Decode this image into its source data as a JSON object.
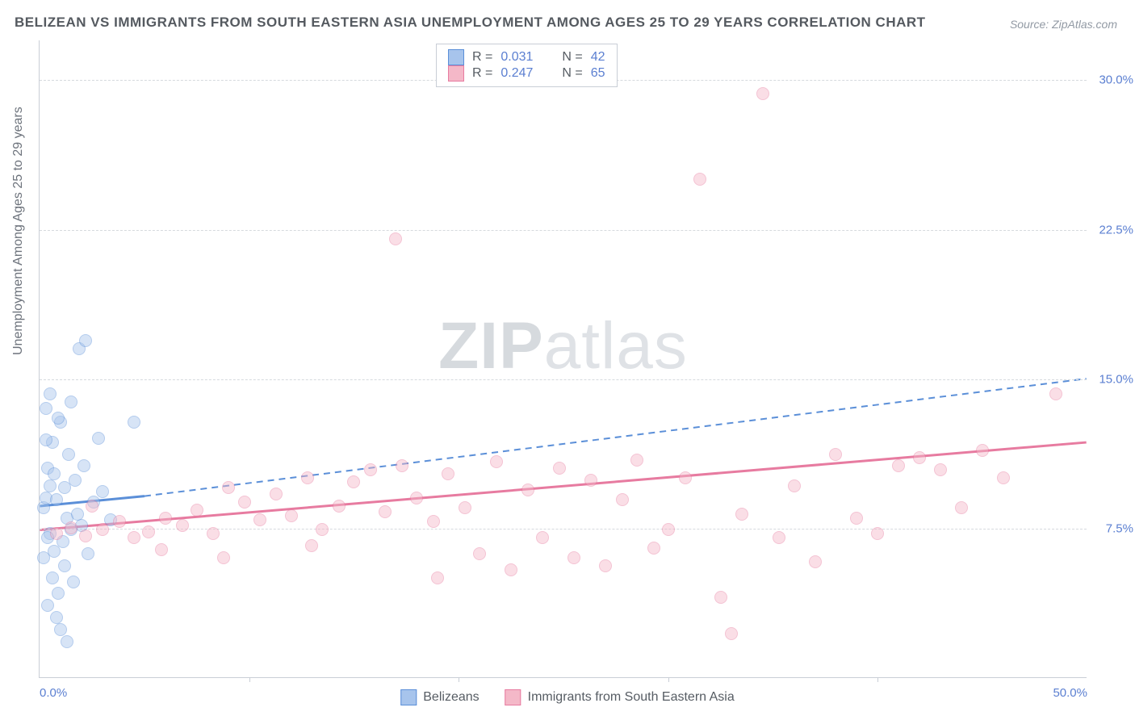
{
  "title": "BELIZEAN VS IMMIGRANTS FROM SOUTH EASTERN ASIA UNEMPLOYMENT AMONG AGES 25 TO 29 YEARS CORRELATION CHART",
  "source_label": "Source: ZipAtlas.com",
  "watermark": {
    "bold": "ZIP",
    "rest": "atlas"
  },
  "chart": {
    "type": "scatter",
    "y_axis_title": "Unemployment Among Ages 25 to 29 years",
    "background_color": "#ffffff",
    "grid_color": "#d6dade",
    "axis_color": "#c9ced6",
    "tick_label_color": "#5b7fd1",
    "text_color": "#565c63",
    "xlim": [
      0,
      50
    ],
    "ylim": [
      0,
      32
    ],
    "x_ticks": [
      0,
      10,
      20,
      30,
      40,
      50
    ],
    "x_tick_labels": [
      "0.0%",
      "",
      "",
      "",
      "",
      "50.0%"
    ],
    "y_ticks": [
      7.5,
      15.0,
      22.5,
      30.0
    ],
    "y_tick_labels": [
      "7.5%",
      "15.0%",
      "22.5%",
      "30.0%"
    ],
    "marker_radius": 8,
    "marker_opacity": 0.45,
    "series": [
      {
        "name": "Belizeans",
        "color_fill": "#a7c4ec",
        "color_stroke": "#5b8fd8",
        "R": "0.031",
        "N": "42",
        "regression": {
          "x1": 0,
          "y1": 8.6,
          "x2": 5,
          "y2": 9.1,
          "dash_x2": 50,
          "dash_y2": 15.0
        },
        "points": [
          [
            0.2,
            8.5
          ],
          [
            0.3,
            9.0
          ],
          [
            0.5,
            7.2
          ],
          [
            0.4,
            10.5
          ],
          [
            0.6,
            11.8
          ],
          [
            0.8,
            8.9
          ],
          [
            1.0,
            12.8
          ],
          [
            1.2,
            9.5
          ],
          [
            0.3,
            13.5
          ],
          [
            0.5,
            14.2
          ],
          [
            0.9,
            13.0
          ],
          [
            1.3,
            8.0
          ],
          [
            0.4,
            7.0
          ],
          [
            0.7,
            6.3
          ],
          [
            1.1,
            6.8
          ],
          [
            1.5,
            7.4
          ],
          [
            1.8,
            8.2
          ],
          [
            2.0,
            7.6
          ],
          [
            2.3,
            6.2
          ],
          [
            0.6,
            5.0
          ],
          [
            0.9,
            4.2
          ],
          [
            1.2,
            5.6
          ],
          [
            1.6,
            4.8
          ],
          [
            0.4,
            3.6
          ],
          [
            0.8,
            3.0
          ],
          [
            1.0,
            2.4
          ],
          [
            1.3,
            1.8
          ],
          [
            2.6,
            8.8
          ],
          [
            3.0,
            9.3
          ],
          [
            3.4,
            7.9
          ],
          [
            1.9,
            16.5
          ],
          [
            2.2,
            16.9
          ],
          [
            4.5,
            12.8
          ],
          [
            1.4,
            11.2
          ],
          [
            0.3,
            11.9
          ],
          [
            0.7,
            10.2
          ],
          [
            2.8,
            12.0
          ],
          [
            0.5,
            9.6
          ],
          [
            1.7,
            9.9
          ],
          [
            2.1,
            10.6
          ],
          [
            0.2,
            6.0
          ],
          [
            1.5,
            13.8
          ]
        ]
      },
      {
        "name": "Immigrants from South Eastern Asia",
        "color_fill": "#f4b8c8",
        "color_stroke": "#e77ba0",
        "R": "0.247",
        "N": "65",
        "regression": {
          "x1": 0,
          "y1": 7.4,
          "x2": 50,
          "y2": 11.8
        },
        "points": [
          [
            0.8,
            7.2
          ],
          [
            1.5,
            7.5
          ],
          [
            2.2,
            7.1
          ],
          [
            3.0,
            7.4
          ],
          [
            3.8,
            7.8
          ],
          [
            4.5,
            7.0
          ],
          [
            5.2,
            7.3
          ],
          [
            6.0,
            8.0
          ],
          [
            6.8,
            7.6
          ],
          [
            7.5,
            8.4
          ],
          [
            8.3,
            7.2
          ],
          [
            9.0,
            9.5
          ],
          [
            9.8,
            8.8
          ],
          [
            10.5,
            7.9
          ],
          [
            11.3,
            9.2
          ],
          [
            12.0,
            8.1
          ],
          [
            12.8,
            10.0
          ],
          [
            13.5,
            7.4
          ],
          [
            14.3,
            8.6
          ],
          [
            15.0,
            9.8
          ],
          [
            15.8,
            10.4
          ],
          [
            16.5,
            8.3
          ],
          [
            17.3,
            10.6
          ],
          [
            18.0,
            9.0
          ],
          [
            18.8,
            7.8
          ],
          [
            19.5,
            10.2
          ],
          [
            20.3,
            8.5
          ],
          [
            21.0,
            6.2
          ],
          [
            21.8,
            10.8
          ],
          [
            22.5,
            5.4
          ],
          [
            23.3,
            9.4
          ],
          [
            24.0,
            7.0
          ],
          [
            24.8,
            10.5
          ],
          [
            25.5,
            6.0
          ],
          [
            26.3,
            9.9
          ],
          [
            27.0,
            5.6
          ],
          [
            27.8,
            8.9
          ],
          [
            28.5,
            10.9
          ],
          [
            29.3,
            6.5
          ],
          [
            30.0,
            7.4
          ],
          [
            30.8,
            10.0
          ],
          [
            31.5,
            25.0
          ],
          [
            32.5,
            4.0
          ],
          [
            33.5,
            8.2
          ],
          [
            34.5,
            29.3
          ],
          [
            35.3,
            7.0
          ],
          [
            36.0,
            9.6
          ],
          [
            37.0,
            5.8
          ],
          [
            38.0,
            11.2
          ],
          [
            39.0,
            8.0
          ],
          [
            40.0,
            7.2
          ],
          [
            41.0,
            10.6
          ],
          [
            42.0,
            11.0
          ],
          [
            43.0,
            10.4
          ],
          [
            44.0,
            8.5
          ],
          [
            45.0,
            11.4
          ],
          [
            46.0,
            10.0
          ],
          [
            17.0,
            22.0
          ],
          [
            48.5,
            14.2
          ],
          [
            5.8,
            6.4
          ],
          [
            8.8,
            6.0
          ],
          [
            13.0,
            6.6
          ],
          [
            19.0,
            5.0
          ],
          [
            33.0,
            2.2
          ],
          [
            2.5,
            8.6
          ]
        ]
      }
    ]
  },
  "top_legend": {
    "R_label": "R =",
    "N_label": "N ="
  },
  "bottom_legend": {
    "items": [
      "Belizeans",
      "Immigrants from South Eastern Asia"
    ]
  }
}
